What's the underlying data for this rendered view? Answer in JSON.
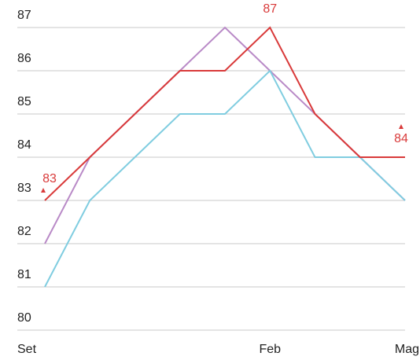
{
  "chart_data": {
    "type": "line",
    "categories": [
      "Set",
      null,
      null,
      null,
      null,
      "Feb",
      null,
      null,
      "Mag"
    ],
    "series": [
      {
        "color": "#b98ac7",
        "values": [
          82,
          84,
          85,
          86,
          87,
          86,
          85,
          84,
          83
        ]
      },
      {
        "color": "#80cde0",
        "values": [
          81,
          83,
          84,
          85,
          85,
          86,
          84,
          84,
          83
        ]
      },
      {
        "color": "#d93a3a",
        "values": [
          83,
          84,
          85,
          86,
          86,
          87,
          85,
          84,
          84
        ],
        "data_labels": [
          0,
          5,
          8
        ],
        "markers": [
          0,
          8
        ]
      }
    ],
    "ylim": [
      80,
      87
    ],
    "yticks": [
      80,
      81,
      82,
      83,
      84,
      85,
      86,
      87
    ],
    "grid": true
  }
}
